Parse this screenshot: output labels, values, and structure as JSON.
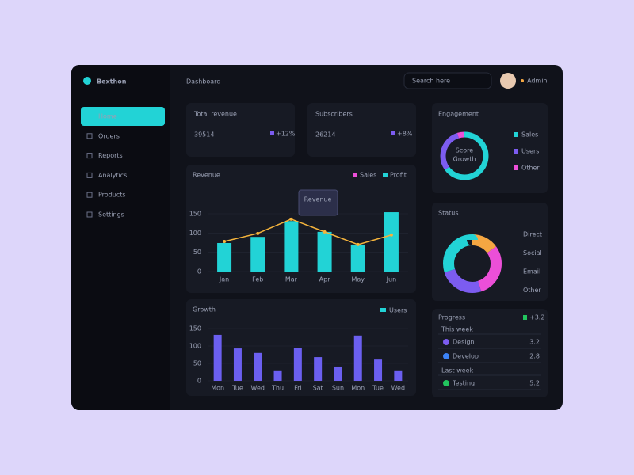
{
  "header": {
    "brand": "Bexthon",
    "page": "Dashboard",
    "search": "Search here",
    "user": "Admin"
  },
  "sidebar": {
    "items": [
      "Home",
      "Orders",
      "Reports",
      "Analytics",
      "Products",
      "Settings"
    ]
  },
  "kpis": [
    {
      "label": "Total revenue",
      "value": "39514",
      "badge": "+12%"
    },
    {
      "label": "Subscribers",
      "value": "26214",
      "badge": "+8%"
    }
  ],
  "revenue_chart": {
    "title": "Revenue",
    "tooltip": "Revenue",
    "legend": [
      {
        "name": "Sales",
        "color": "#ec4fd8"
      },
      {
        "name": "Profit",
        "color": "#22d3d6"
      }
    ],
    "categories": [
      "Jan",
      "Feb",
      "Mar",
      "Apr",
      "May",
      "Jun"
    ],
    "ylim": [
      0,
      150
    ],
    "yticks": [
      0,
      50,
      100,
      150
    ],
    "bars": [
      74,
      90,
      131,
      103,
      70,
      154
    ],
    "line": [
      78,
      99,
      136,
      103,
      70,
      95
    ],
    "bar_color": "#22d3d6",
    "line_color": "#f5b43c"
  },
  "growth_chart": {
    "title": "Growth",
    "legend": "Users",
    "legend_color": "#22d3d6",
    "categories": [
      "Mon",
      "Tue",
      "Wed",
      "Thu",
      "Fri",
      "Sat",
      "Sun",
      "Mon",
      "Tue",
      "Wed"
    ],
    "ylim": [
      0,
      150
    ],
    "yticks": [
      0,
      50,
      100,
      150
    ],
    "values": [
      132,
      93,
      80,
      30,
      95,
      68,
      41,
      130,
      61,
      30
    ],
    "color": "#6b5ff0"
  },
  "engagement": {
    "title": "Engagement",
    "center": [
      "Score",
      "Growth"
    ],
    "segments": [
      {
        "name": "Sales",
        "value": 65,
        "color": "#22d3d6"
      },
      {
        "name": "Users",
        "value": 30,
        "color": "#7c5cf0"
      },
      {
        "name": "Other",
        "value": 5,
        "color": "#ec4fd8"
      }
    ]
  },
  "status": {
    "title": "Status",
    "segments": [
      {
        "name": "Direct",
        "value": 15,
        "color": "#f5a742"
      },
      {
        "name": "Social",
        "value": 30,
        "color": "#ec4fd8"
      },
      {
        "name": "Email",
        "value": 25,
        "color": "#7c5cf0"
      },
      {
        "name": "Other",
        "value": 30,
        "color": "#22d3d6"
      }
    ]
  },
  "progress": {
    "title": "Progress",
    "badge": "+3.2",
    "groups": [
      {
        "heading": "This week",
        "rows": [
          {
            "label": "Design",
            "value": "3.2",
            "color": "#7c5cf0"
          },
          {
            "label": "Develop",
            "value": "2.8",
            "color": "#3b82f6"
          }
        ]
      },
      {
        "heading": "Last week",
        "rows": [
          {
            "label": "Testing",
            "value": "5.2",
            "color": "#22c55e"
          }
        ]
      }
    ]
  }
}
